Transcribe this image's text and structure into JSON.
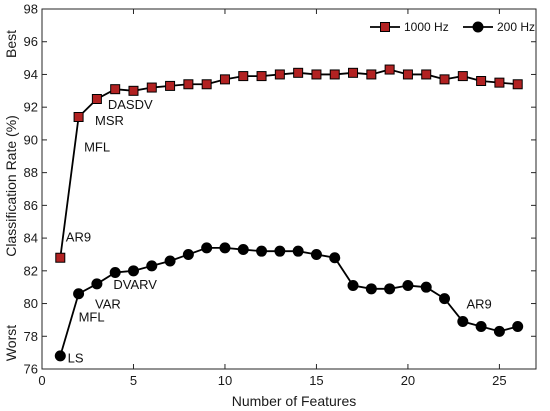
{
  "chart_data": {
    "type": "line",
    "xlabel": "Number of Features",
    "ylabel": "Classification Rate (%)",
    "xlim": [
      0,
      27
    ],
    "ylim": [
      76,
      98
    ],
    "xticks": [
      0,
      5,
      10,
      15,
      20,
      25
    ],
    "yticks": [
      76,
      78,
      80,
      82,
      84,
      86,
      88,
      90,
      92,
      94,
      96,
      98
    ],
    "grid": false,
    "legend_position": "top-right",
    "side_labels": {
      "top": "Best",
      "bottom": "Worst"
    },
    "series": [
      {
        "name": "1000 Hz",
        "marker": "square",
        "color": "#b22222",
        "line_color": "#000000",
        "x": [
          1,
          2,
          3,
          4,
          5,
          6,
          7,
          8,
          9,
          10,
          11,
          12,
          13,
          14,
          15,
          16,
          17,
          18,
          19,
          20,
          21,
          22,
          23,
          24,
          25,
          26
        ],
        "values": [
          82.8,
          91.4,
          92.5,
          93.1,
          93.0,
          93.2,
          93.3,
          93.4,
          93.4,
          93.7,
          93.9,
          93.9,
          94.0,
          94.1,
          94.0,
          94.0,
          94.1,
          94.0,
          94.3,
          94.0,
          94.0,
          93.7,
          93.9,
          93.6,
          93.5,
          93.4
        ]
      },
      {
        "name": "200 Hz",
        "marker": "circle",
        "color": "#000000",
        "line_color": "#000000",
        "x": [
          1,
          2,
          3,
          4,
          5,
          6,
          7,
          8,
          9,
          10,
          11,
          12,
          13,
          14,
          15,
          16,
          17,
          18,
          19,
          20,
          21,
          22,
          23,
          24,
          25,
          26
        ],
        "values": [
          76.8,
          80.6,
          81.2,
          81.9,
          82.0,
          82.3,
          82.6,
          83.0,
          83.4,
          83.4,
          83.3,
          83.2,
          83.2,
          83.2,
          83.0,
          82.8,
          81.1,
          80.9,
          80.9,
          81.1,
          81.0,
          80.3,
          78.9,
          78.6,
          78.3,
          78.6
        ]
      }
    ],
    "annotations": [
      {
        "text": "AR9",
        "x": 1.3,
        "y": 83.8
      },
      {
        "text": "MFL",
        "x": 2.3,
        "y": 89.3
      },
      {
        "text": "MSR",
        "x": 2.9,
        "y": 90.9
      },
      {
        "text": "DASDV",
        "x": 3.6,
        "y": 91.9
      },
      {
        "text": "LS",
        "x": 1.4,
        "y": 76.4
      },
      {
        "text": "MFL",
        "x": 2.0,
        "y": 78.9
      },
      {
        "text": "VAR",
        "x": 2.9,
        "y": 79.7
      },
      {
        "text": "DVARV",
        "x": 3.9,
        "y": 80.9
      },
      {
        "text": "AR9",
        "x": 23.2,
        "y": 79.7
      }
    ]
  }
}
